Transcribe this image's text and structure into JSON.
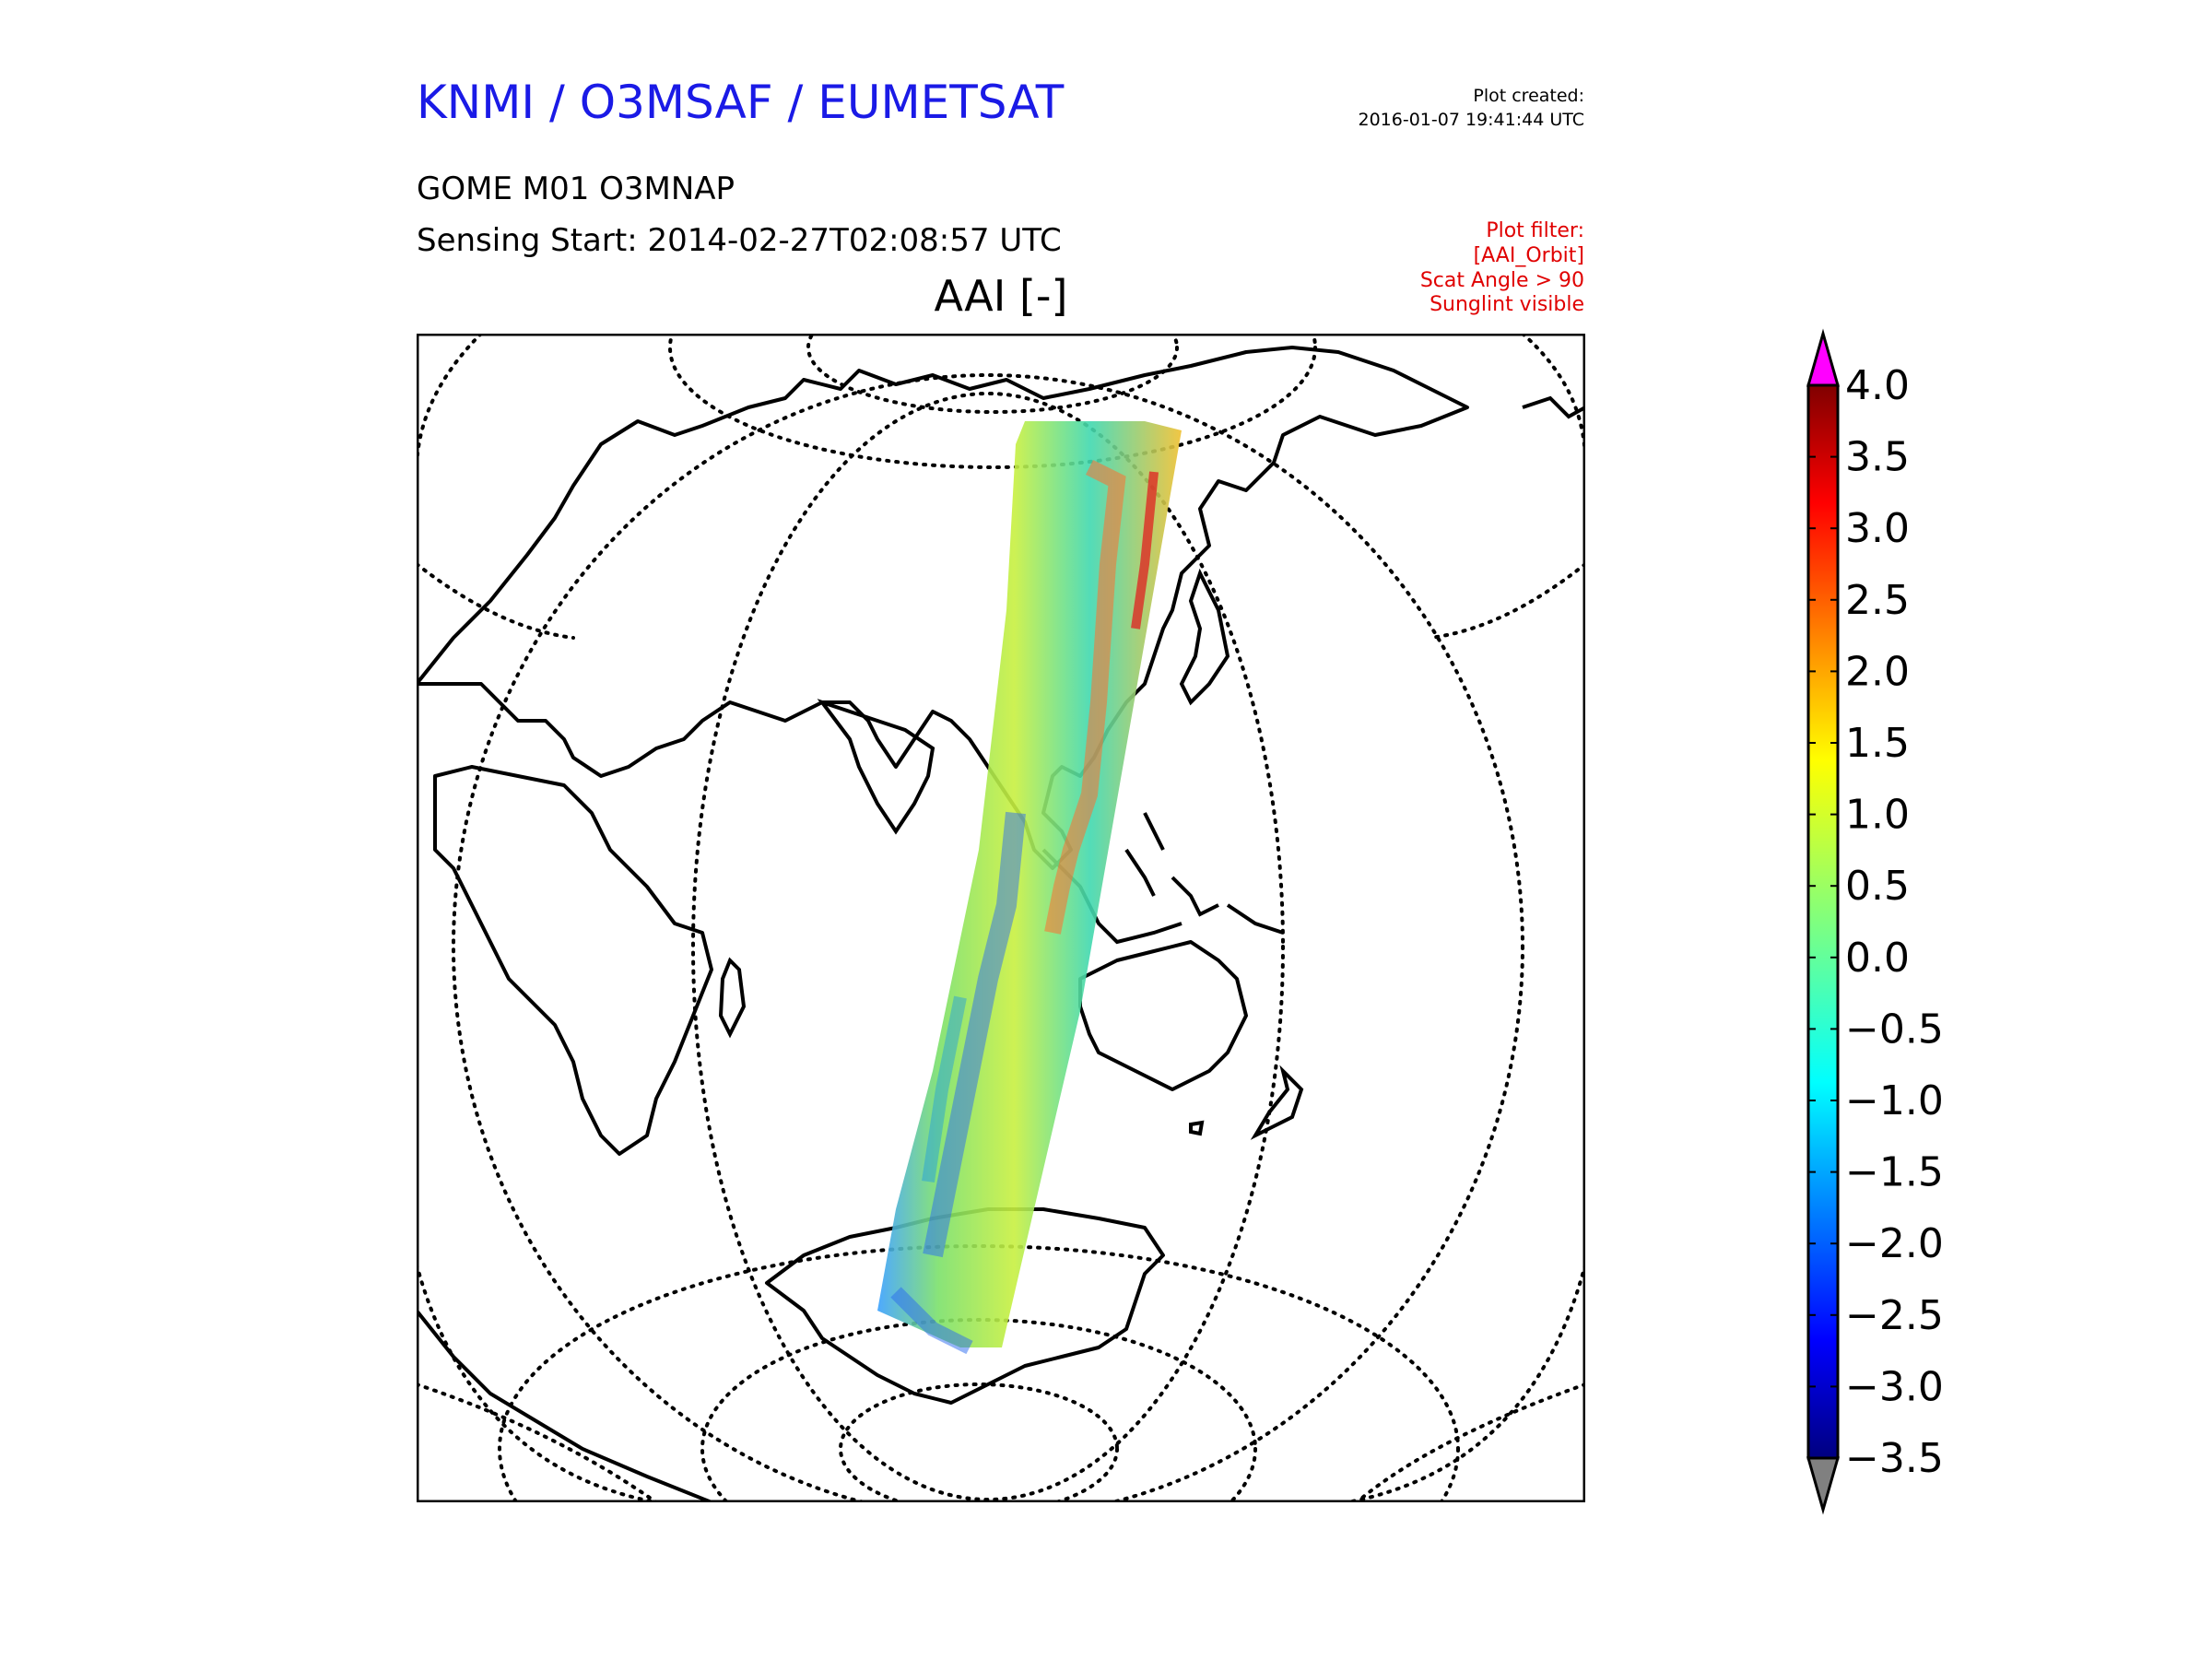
{
  "header": {
    "organization": "KNMI / O3MSAF / EUMETSAT",
    "plot_created_label": "Plot created:",
    "plot_created_value": "2016-01-07 19:41:44 UTC",
    "product": "GOME M01 O3MNAP",
    "sensing_start": "Sensing Start: 2014-02-27T02:08:57 UTC"
  },
  "filter": {
    "lines": [
      "Plot filter:",
      "[AAI_Orbit]",
      "Scat Angle > 90",
      "Sunglint visible"
    ]
  },
  "map": {
    "title": "AAI [-]",
    "projection": "orthographic",
    "overlay": "satellite-swath",
    "coastlines": true,
    "graticule": "dotted"
  },
  "colorbar": {
    "min": -3.5,
    "max": 4.0,
    "ticks": [
      "4.0",
      "3.5",
      "3.0",
      "2.5",
      "2.0",
      "1.5",
      "1.0",
      "0.5",
      "0.0",
      "−0.5",
      "−1.0",
      "−1.5",
      "−2.0",
      "−2.5",
      "−3.0",
      "−3.5"
    ],
    "colormap": "jet",
    "over_color": "#ff00ff",
    "under_color": "#808080"
  }
}
